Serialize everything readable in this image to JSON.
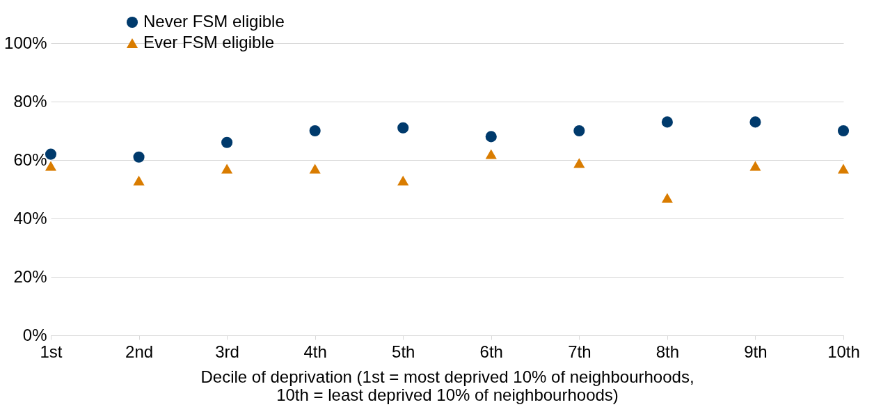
{
  "chart_data": {
    "type": "scatter",
    "categories": [
      "1st",
      "2nd",
      "3rd",
      "4th",
      "5th",
      "6th",
      "7th",
      "8th",
      "9th",
      "10th"
    ],
    "xlabel": "Decile of deprivation (1st = most deprived 10% of neighbourhoods,\n10th = least deprived 10% of neighbourhoods)",
    "series": [
      {
        "name": "Never FSM eligible",
        "color": "#003a6c",
        "marker": "circle",
        "values": [
          62,
          61,
          66,
          70,
          71,
          68,
          70,
          73,
          73,
          70
        ]
      },
      {
        "name": "Ever FSM eligible",
        "color": "#d97c00",
        "marker": "triangle",
        "values": [
          58,
          53,
          57,
          57,
          53,
          62,
          59,
          47,
          58,
          57
        ]
      }
    ],
    "ylim": [
      0,
      100
    ],
    "yticks": [
      {
        "value": 0,
        "label": "0%"
      },
      {
        "value": 20,
        "label": "20%"
      },
      {
        "value": 40,
        "label": "40%"
      },
      {
        "value": 60,
        "label": "60%"
      },
      {
        "value": 80,
        "label": "80%"
      },
      {
        "value": 100,
        "label": "100%"
      }
    ],
    "grid": "y",
    "legend": "top left"
  }
}
